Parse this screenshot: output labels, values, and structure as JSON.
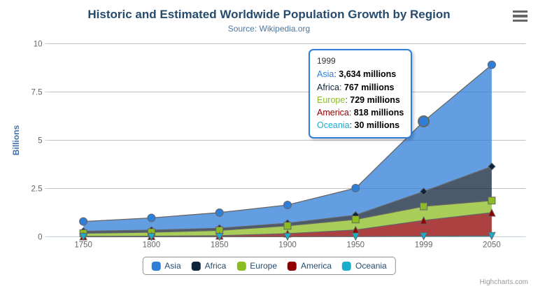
{
  "chart": {
    "title": "Historic and Estimated Worldwide Population Growth by Region",
    "subtitle": "Source: Wikipedia.org",
    "credit": "Highcharts.com",
    "menu_icon": "hamburger-icon"
  },
  "chart_data": {
    "type": "area",
    "stacking": "normal",
    "title": "Historic and Estimated Worldwide Population Growth by Region",
    "subtitle": "Source: Wikipedia.org",
    "xlabel": "",
    "ylabel": "Billions",
    "value_unit": "millions",
    "categories": [
      "1750",
      "1800",
      "1850",
      "1900",
      "1950",
      "1999",
      "2050"
    ],
    "yticks": [
      "0",
      "2.5",
      "5",
      "7.5",
      "10"
    ],
    "ytick_values": [
      0,
      2.5,
      5,
      7.5,
      10
    ],
    "ylim": [
      0,
      10
    ],
    "grid": true,
    "legend_position": "bottom",
    "series": [
      {
        "name": "Asia",
        "color": "#2f7ed8",
        "marker": "circle",
        "values": [
          502,
          635,
          809,
          947,
          1402,
          3634,
          5268
        ]
      },
      {
        "name": "Africa",
        "color": "#0d233a",
        "marker": "diamond",
        "values": [
          106,
          107,
          111,
          133,
          221,
          767,
          1766
        ]
      },
      {
        "name": "Europe",
        "color": "#8bbc21",
        "marker": "square",
        "values": [
          163,
          203,
          276,
          408,
          547,
          729,
          628
        ]
      },
      {
        "name": "America",
        "color": "#910000",
        "marker": "triangle",
        "values": [
          18,
          31,
          54,
          156,
          339,
          818,
          1201
        ]
      },
      {
        "name": "Oceania",
        "color": "#1aadce",
        "marker": "triangle-down",
        "values": [
          2,
          2,
          2,
          6,
          13,
          30,
          46
        ]
      }
    ],
    "hover": {
      "series": "Asia",
      "category": "1999",
      "category_index": 5
    }
  },
  "tooltip": {
    "header": "1999",
    "rows": [
      {
        "name": "Asia",
        "value": "3,634 millions"
      },
      {
        "name": "Africa",
        "value": "767 millions"
      },
      {
        "name": "Europe",
        "value": "729 millions"
      },
      {
        "name": "America",
        "value": "818 millions"
      },
      {
        "name": "Oceania",
        "value": "30 millions"
      }
    ]
  },
  "colors": {
    "title": "#274b6d",
    "subtitle": "#4d759e",
    "axis_label": "#666666",
    "axis_title": "#4572a7",
    "grid_line": "#c0c0c0",
    "axis_line": "#c0d0e0",
    "series_outline": "#666666",
    "legend_border": "#909090",
    "legend_text": "#274b6d",
    "credit": "#999999"
  }
}
